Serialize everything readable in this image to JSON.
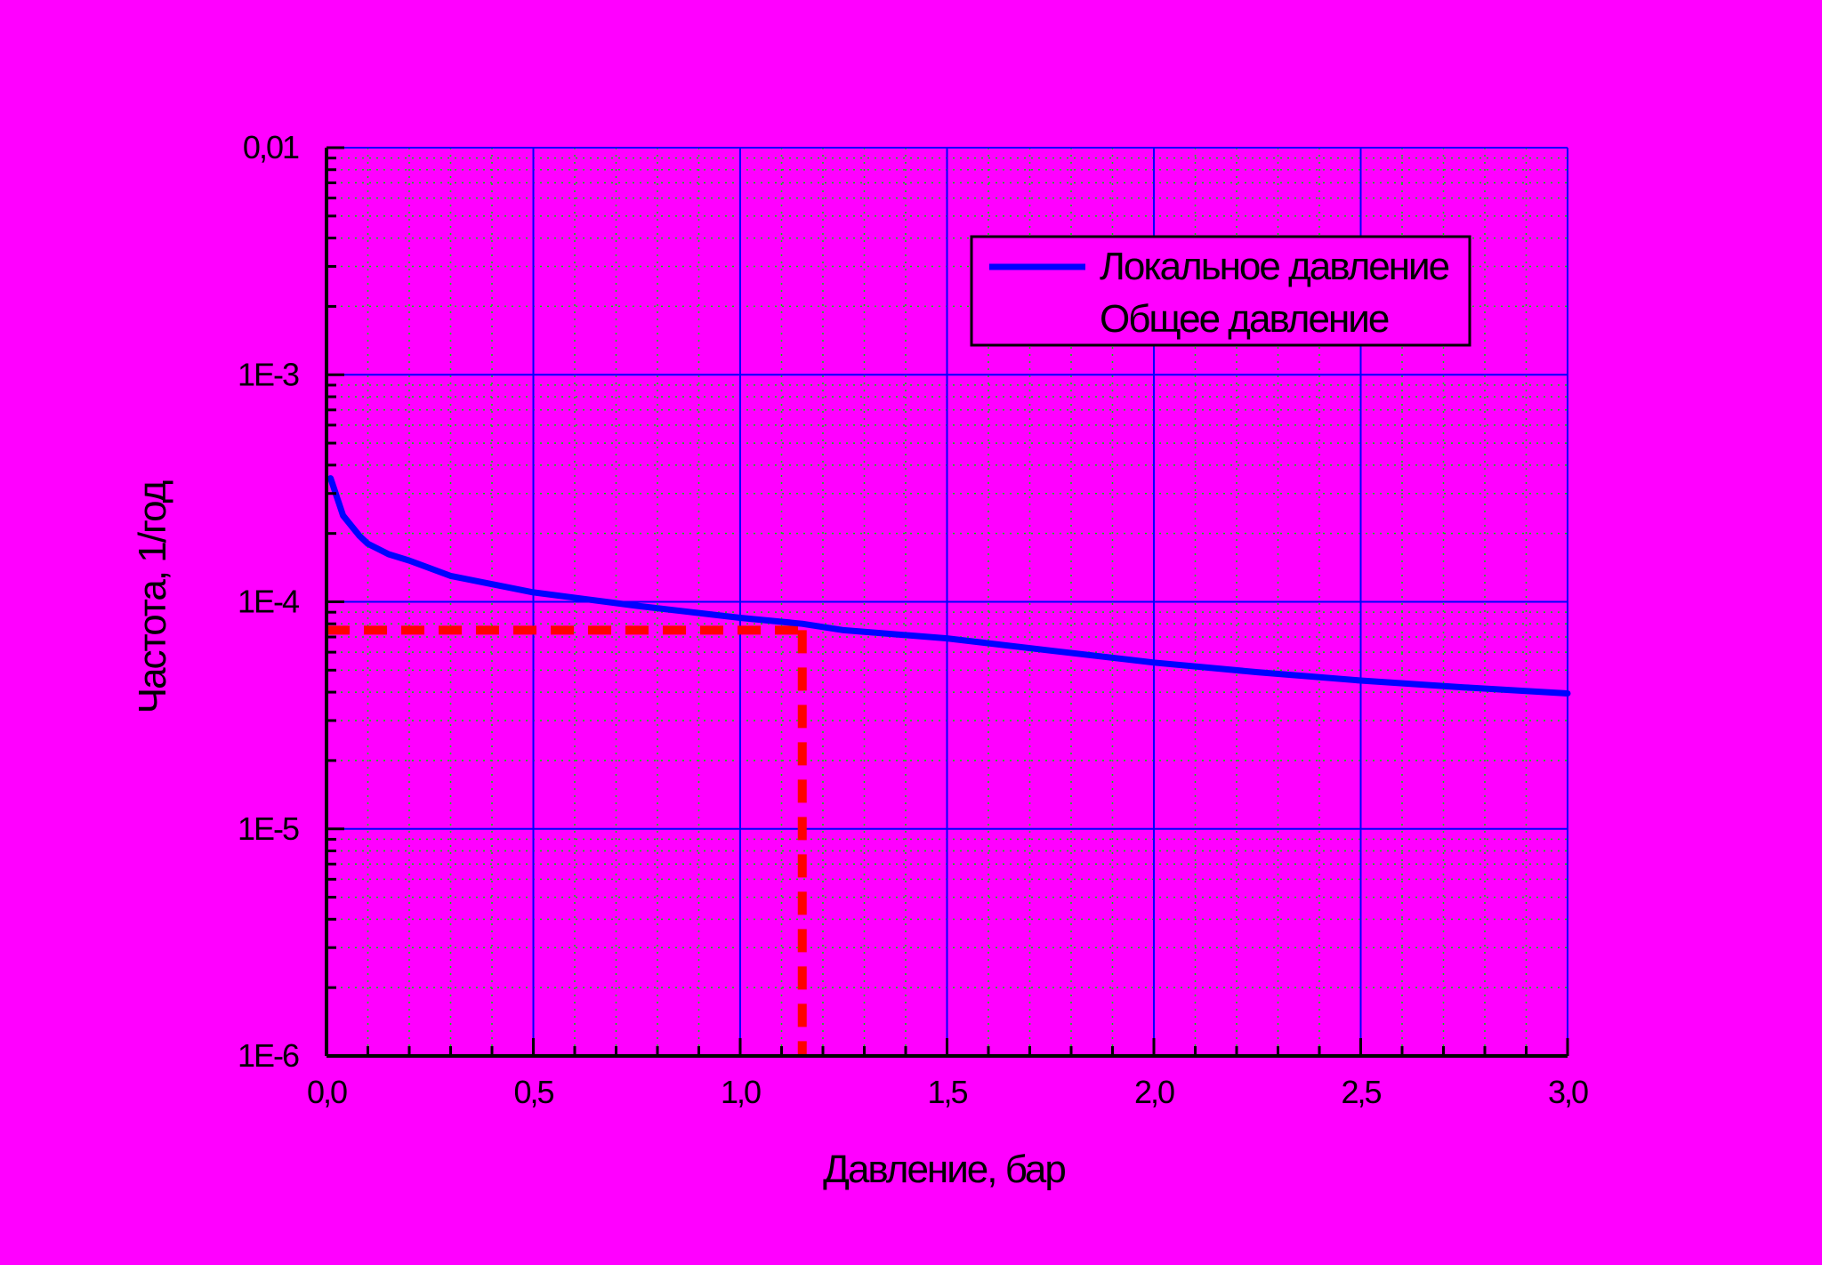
{
  "colors": {
    "background": "#ff00ff",
    "major_grid": "#0000ff",
    "minor_grid": "#00d000",
    "axis": "#000000",
    "local_series": "#0000ff",
    "general_series": "#ff00ff",
    "reference_line": "#ff0000"
  },
  "chart_data": {
    "type": "line",
    "xlabel": "Давление, бар",
    "ylabel": "Частота, 1/год",
    "xlim": [
      0,
      3.0
    ],
    "ylim": [
      1e-06,
      0.01
    ],
    "y_scale": "log",
    "grid": true,
    "legend_position": "top-right",
    "x_ticks": [
      "0,0",
      "0,5",
      "1,0",
      "1,5",
      "2,0",
      "2,5",
      "3,0"
    ],
    "y_ticks": [
      "1E-6",
      "1E-5",
      "1E-4",
      "1E-3",
      "0,01"
    ],
    "series": [
      {
        "name": "Локальное давление",
        "color": "#0000ff",
        "points": [
          [
            0.01,
            0.00035
          ],
          [
            0.04,
            0.00024
          ],
          [
            0.08,
            0.000195
          ],
          [
            0.1,
            0.00018
          ],
          [
            0.15,
            0.000162
          ],
          [
            0.2,
            0.000152
          ],
          [
            0.3,
            0.00013
          ],
          [
            0.5,
            0.00011
          ],
          [
            0.75,
            9.6e-05
          ],
          [
            1.0,
            8.5e-05
          ],
          [
            1.15,
            8e-05
          ],
          [
            1.25,
            7.5e-05
          ],
          [
            1.5,
            6.9e-05
          ],
          [
            1.75,
            6.1e-05
          ],
          [
            2.0,
            5.4e-05
          ],
          [
            2.25,
            4.9e-05
          ],
          [
            2.5,
            4.5e-05
          ],
          [
            2.75,
            4.2e-05
          ],
          [
            3.0,
            3.95e-05
          ]
        ]
      },
      {
        "name": "Общее давление",
        "color": "#ff00ff",
        "points": []
      }
    ],
    "reference_lines": [
      {
        "type": "horizontal",
        "y": 7.5e-05,
        "x_from": 0,
        "x_to": 1.15,
        "style": "dashed",
        "color": "#ff0000"
      },
      {
        "type": "vertical",
        "x": 1.15,
        "y_from": 1e-06,
        "y_to": 7.5e-05,
        "style": "dashed",
        "color": "#ff0000"
      }
    ]
  }
}
